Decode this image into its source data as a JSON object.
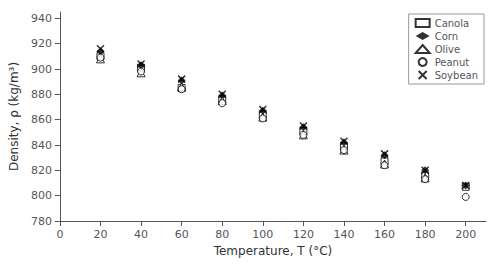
{
  "chart_data": {
    "type": "scatter",
    "xlabel": "Temperature, T (°C)",
    "ylabel": "Density, ρ (kg/m³)",
    "xlim": [
      0,
      210
    ],
    "ylim": [
      780,
      945
    ],
    "xticks": [
      0,
      20,
      40,
      60,
      80,
      100,
      120,
      140,
      160,
      180,
      200
    ],
    "yticks": [
      780,
      800,
      820,
      840,
      860,
      880,
      900,
      920,
      940
    ],
    "grid": false,
    "legend": "upper right",
    "series": [
      {
        "name": "Canola",
        "color": "#000000",
        "marker": "square_open",
        "x": [
          20,
          40,
          60,
          80,
          100,
          120,
          140,
          160,
          180,
          200
        ],
        "values": [
          910,
          901,
          885,
          876,
          864,
          851,
          839,
          827,
          816,
          807
        ]
      },
      {
        "name": "Corn",
        "color": "#000000",
        "marker": "diamond",
        "x": [
          20,
          40,
          60,
          80,
          100,
          120,
          140,
          160,
          180,
          200
        ],
        "values": [
          914,
          903,
          891,
          879,
          867,
          854,
          842,
          832,
          820,
          808
        ]
      },
      {
        "name": "Olive",
        "color": "#000000",
        "marker": "triangle_open",
        "x": [
          20,
          40,
          60,
          80,
          100,
          120,
          140,
          160,
          180
        ],
        "values": [
          908,
          897,
          886,
          875,
          862,
          848,
          836,
          825,
          814
        ]
      },
      {
        "name": "Peanut",
        "color": "#000000",
        "marker": "circle_open",
        "x": [
          20,
          40,
          60,
          80,
          100,
          120,
          140,
          160,
          180,
          200
        ],
        "values": [
          909,
          898,
          884,
          873,
          861,
          848,
          836,
          824,
          813,
          799
        ]
      },
      {
        "name": "Soybean",
        "color": "#000000",
        "marker": "x",
        "x": [
          20,
          40,
          60,
          80,
          100,
          120,
          140,
          160,
          180,
          200
        ],
        "values": [
          916,
          904,
          892,
          880,
          868,
          855,
          843,
          833,
          820,
          808
        ]
      }
    ]
  }
}
